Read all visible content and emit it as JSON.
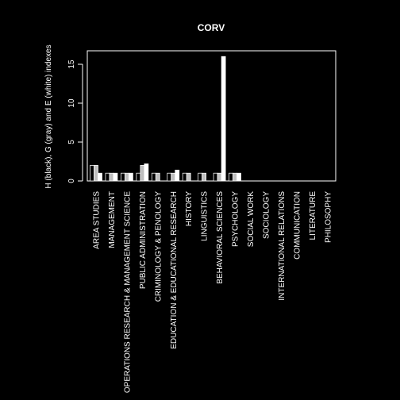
{
  "chart_data": {
    "type": "bar",
    "title": "CORV",
    "xlabel": "",
    "ylabel": "H (black), G (gray) and E (white) indexes",
    "ylim": [
      0,
      17
    ],
    "yticks": [
      0,
      5,
      10,
      15
    ],
    "grid": false,
    "categories": [
      "AREA STUDIES",
      "MANAGEMENT",
      "OPERATIONS RESEARCH & MANAGEMENT SCIENCE",
      "PUBLIC ADMINISTRATION",
      "CRIMINOLOGY & PENOLOGY",
      "EDUCATION & EDUCATIONAL RESEARCH",
      "HISTORY",
      "LINGUISTICS",
      "BEHAVIORAL SCIENCES",
      "PSYCHOLOGY",
      "SOCIAL WORK",
      "SOCIOLOGY",
      "INTERNATIONAL RELATIONS",
      "COMMUNICATION",
      "LITERATURE",
      "PHILOSOPHY"
    ],
    "series": [
      {
        "key": "H",
        "color": "#000000",
        "values": [
          2,
          1,
          1,
          1,
          1,
          1,
          1,
          1,
          1,
          1,
          0,
          0,
          0,
          0,
          0,
          0
        ]
      },
      {
        "key": "G",
        "color": "#bebebe",
        "values": [
          2,
          1,
          1,
          2,
          1,
          1,
          1,
          1,
          1,
          1,
          0,
          0,
          0,
          0,
          0,
          0
        ]
      },
      {
        "key": "E",
        "color": "#ffffff",
        "values": [
          1,
          1,
          1,
          2.2,
          0,
          1.4,
          0,
          0,
          16,
          1,
          0,
          0,
          0,
          0,
          0,
          0
        ]
      }
    ]
  }
}
